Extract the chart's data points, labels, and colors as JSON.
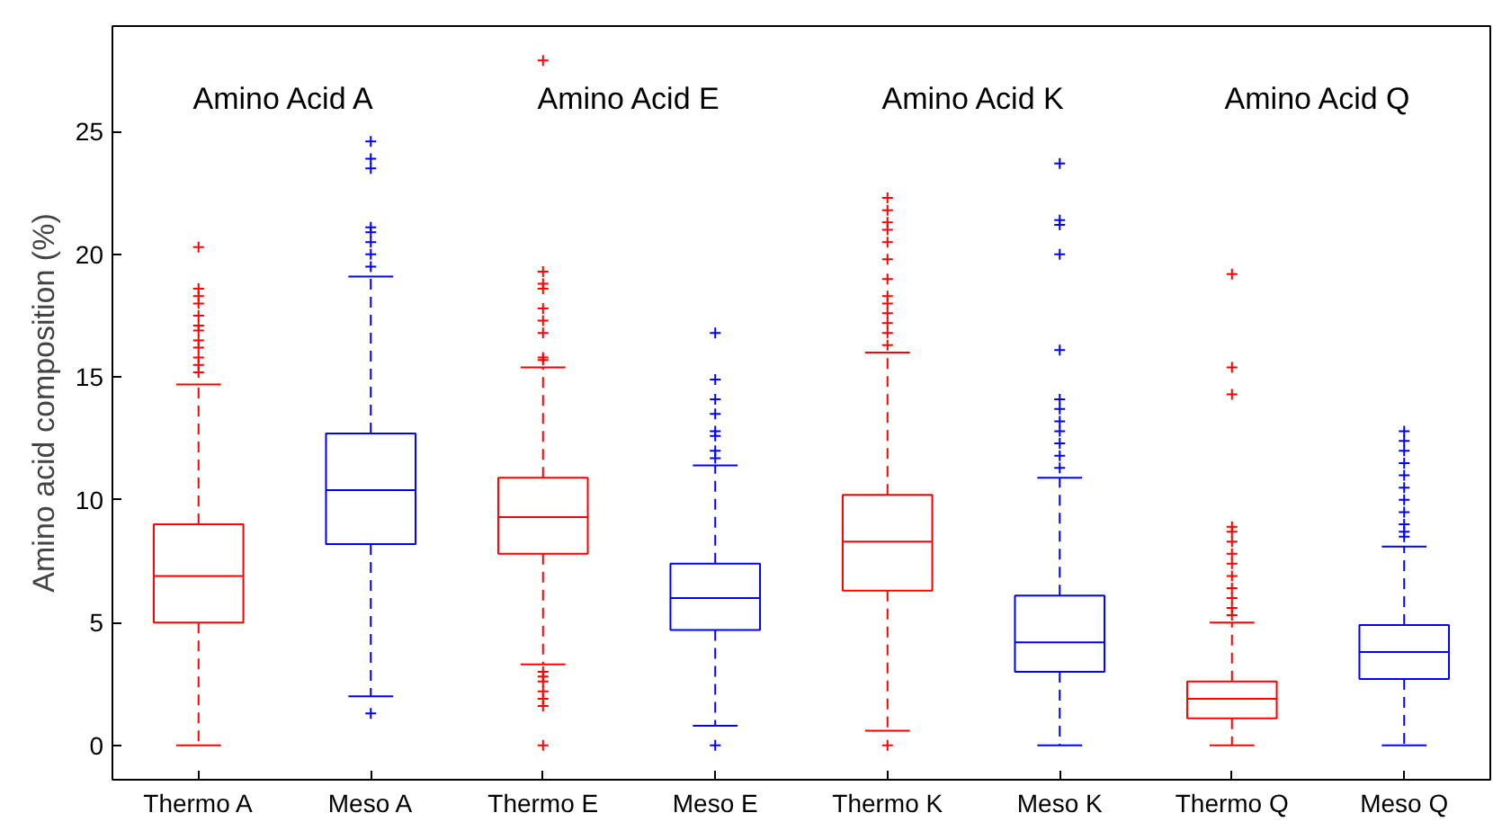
{
  "chart_data": {
    "type": "box",
    "ylabel": "Amino acid composition (%)",
    "categories": [
      "Thermo A",
      "Meso A",
      "Thermo E",
      "Meso E",
      "Thermo K",
      "Meso K",
      "Thermo Q",
      "Meso Q"
    ],
    "colors": [
      "#ff0000",
      "#0000ff",
      "#ff0000",
      "#0000ff",
      "#ff0000",
      "#0000ff",
      "#ff0000",
      "#0000ff"
    ],
    "boxes": [
      {
        "low": 0,
        "q1": 5.0,
        "median": 6.9,
        "q3": 9.0,
        "high": 14.7,
        "outliers": [
          15.2,
          15.5,
          15.8,
          16.2,
          16.5,
          16.9,
          17.1,
          17.5,
          18.0,
          18.3,
          18.6,
          20.3
        ]
      },
      {
        "low": 2.0,
        "q1": 8.2,
        "median": 10.4,
        "q3": 12.7,
        "high": 19.1,
        "outliers": [
          1.3,
          19.5,
          20.0,
          20.5,
          20.9,
          21.1,
          23.5,
          23.9,
          24.6
        ]
      },
      {
        "low": 3.3,
        "q1": 7.8,
        "median": 9.3,
        "q3": 10.9,
        "high": 15.4,
        "outliers": [
          0.0,
          1.6,
          1.9,
          2.2,
          2.6,
          2.8,
          3.0,
          15.7,
          15.8,
          16.8,
          17.3,
          17.8,
          18.6,
          18.8,
          19.3,
          27.9
        ]
      },
      {
        "low": 0.8,
        "q1": 4.7,
        "median": 6.0,
        "q3": 7.4,
        "high": 11.4,
        "outliers": [
          0.0,
          11.7,
          12.0,
          12.6,
          12.8,
          13.5,
          14.1,
          14.9,
          16.8
        ]
      },
      {
        "low": 0.6,
        "q1": 6.3,
        "median": 8.3,
        "q3": 10.2,
        "high": 16.0,
        "outliers": [
          0.0,
          16.3,
          16.8,
          17.2,
          17.6,
          18.0,
          18.3,
          19.0,
          19.8,
          20.5,
          21.0,
          21.3,
          21.8,
          22.3
        ]
      },
      {
        "low": 0,
        "q1": 3.0,
        "median": 4.2,
        "q3": 6.1,
        "high": 10.9,
        "outliers": [
          11.3,
          11.8,
          12.3,
          12.8,
          13.2,
          13.7,
          14.1,
          16.1,
          20.0,
          21.2,
          21.4,
          23.7
        ]
      },
      {
        "low": 0,
        "q1": 1.1,
        "median": 1.9,
        "q3": 2.6,
        "high": 5.0,
        "outliers": [
          5.3,
          5.6,
          6.0,
          6.4,
          6.9,
          7.4,
          7.8,
          8.3,
          8.7,
          8.9,
          14.3,
          15.4,
          19.2
        ]
      },
      {
        "low": 0,
        "q1": 2.7,
        "median": 3.8,
        "q3": 4.9,
        "high": 8.1,
        "outliers": [
          8.5,
          8.7,
          9.0,
          9.5,
          10.0,
          10.5,
          11.0,
          11.5,
          12.0,
          12.4,
          12.8
        ]
      }
    ],
    "annotations": [
      "Amino Acid A",
      "Amino Acid E",
      "Amino Acid K",
      "Amino Acid Q"
    ],
    "ylim": [
      -1.4,
      29.3
    ],
    "yticks": [
      0,
      5,
      10,
      15,
      20,
      25
    ],
    "grid": false
  }
}
